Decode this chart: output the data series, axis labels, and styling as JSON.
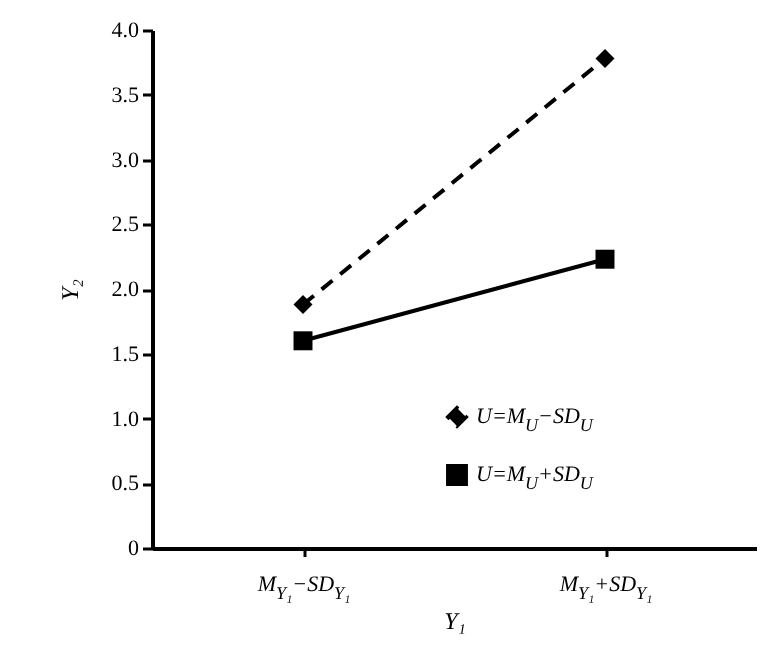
{
  "chart_data": {
    "type": "line",
    "xlabel": "Y₁",
    "ylabel": "Y₂",
    "categories": [
      "M$_{Y₁}$−SD$_{Y₁}$",
      "M$_{Y₁}$+SD$_{Y₁}$"
    ],
    "series": [
      {
        "name": "U=M$_{U}$−SD$_{U}$",
        "color": "#000000",
        "values": [
          1.88,
          3.78
        ],
        "marker": "diamond",
        "line_style": "dashed"
      },
      {
        "name": "U=M$_{U}$+SD$_{U}$",
        "color": "#000000",
        "values": [
          1.6,
          2.23
        ],
        "marker": "square",
        "line_style": "solid"
      }
    ],
    "ylim": [
      0,
      4
    ],
    "yticks": [
      0,
      0.5,
      {
        "value": 1,
        "label": "1.0"
      },
      1.5,
      {
        "value": 2,
        "label": "2.0"
      },
      2.5,
      {
        "value": 3,
        "label": "3.0"
      },
      3.5,
      {
        "value": 4,
        "label": "4.0"
      }
    ],
    "grid": false,
    "legend": "bottom right"
  }
}
